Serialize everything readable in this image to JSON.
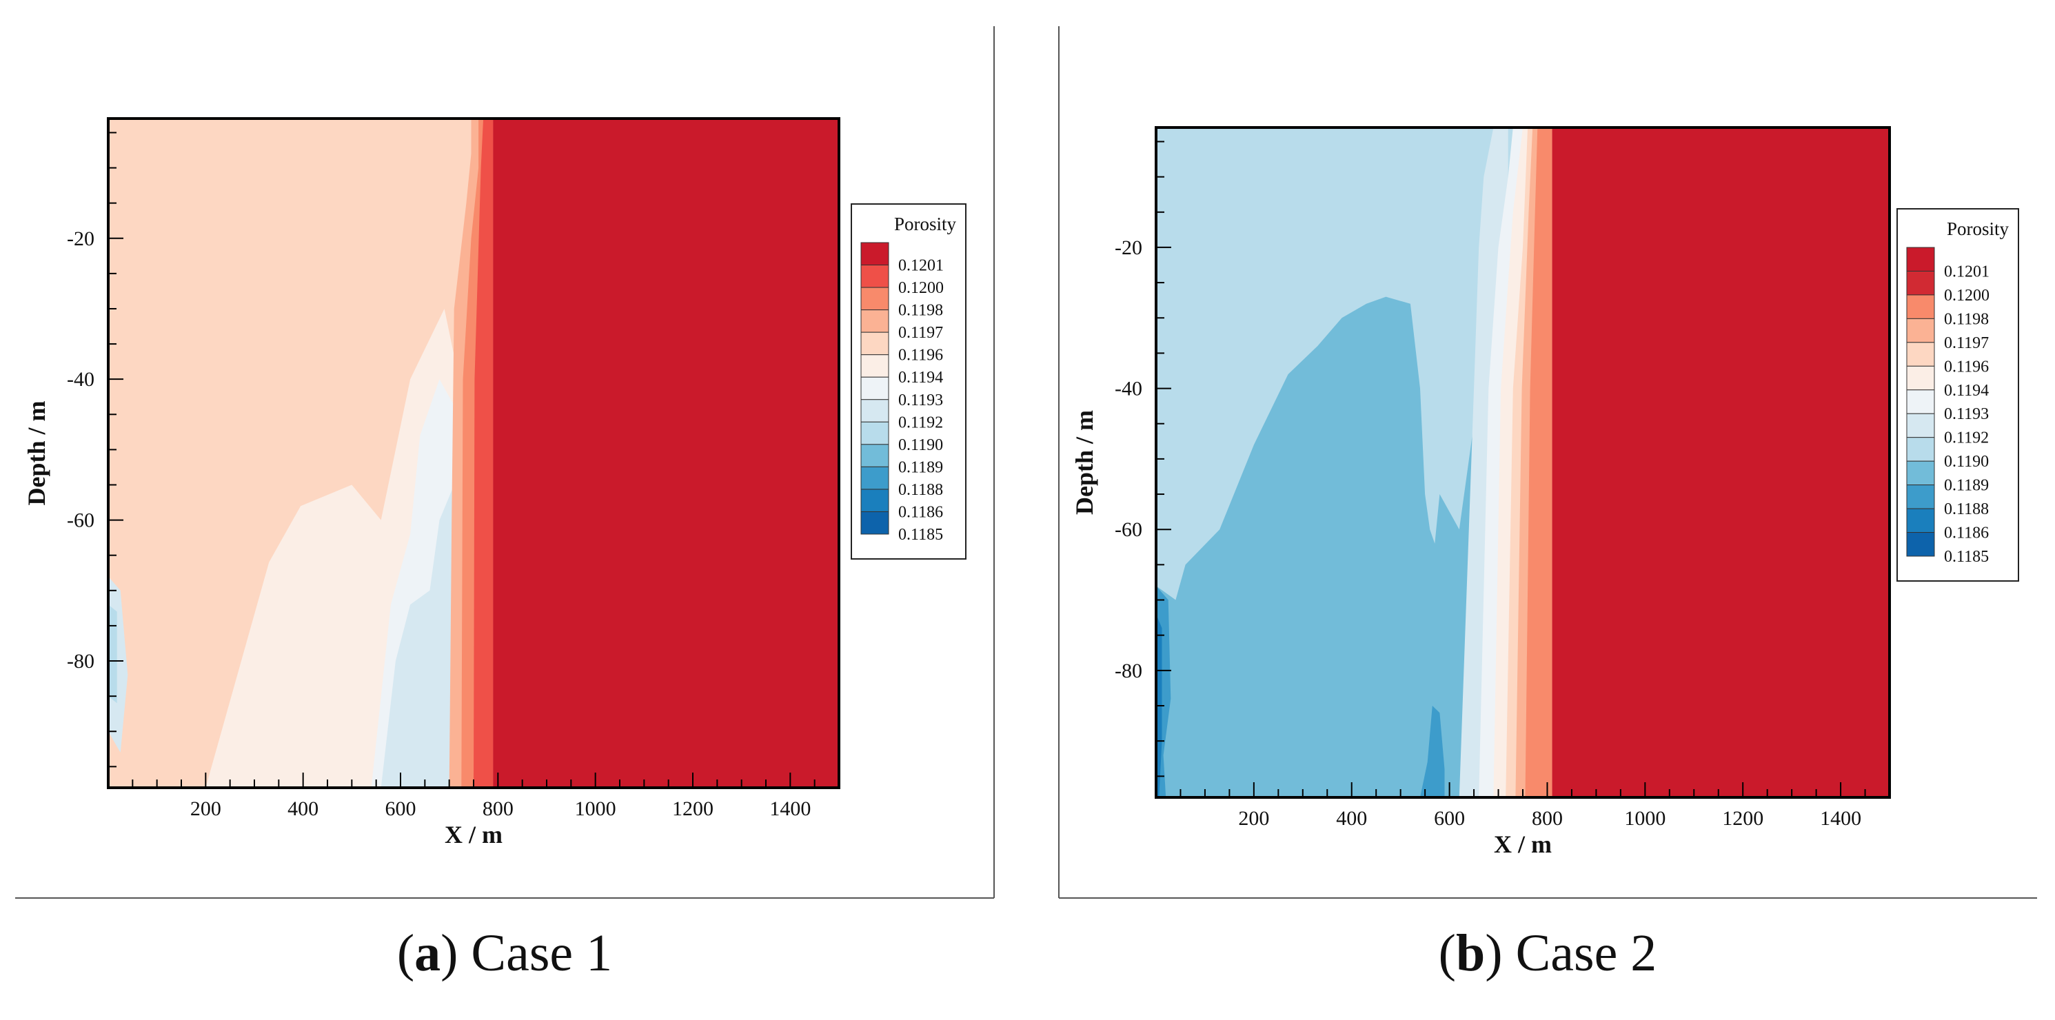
{
  "chart_data": [
    {
      "type": "contour",
      "caption_letter": "a",
      "caption_text": " Case 1",
      "xlabel": "X / m",
      "ylabel": "Depth / m",
      "xlim": [
        0,
        1500
      ],
      "ylim": [
        -98,
        -3
      ],
      "x_ticks": [
        200,
        400,
        600,
        800,
        1000,
        1200,
        1400
      ],
      "y_ticks": [
        -20,
        -40,
        -60,
        -80
      ],
      "legend_title": "Porosity",
      "levels": [
        "0.1201",
        "0.1200",
        "0.1198",
        "0.1197",
        "0.1196",
        "0.1194",
        "0.1193",
        "0.1192",
        "0.1190",
        "0.1189",
        "0.1188",
        "0.1186",
        "0.1185"
      ],
      "colors": [
        "#ca1a2b",
        "#ef5048",
        "#f88a6b",
        "#fbb294",
        "#fdd7c2",
        "#fbeee6",
        "#eef3f7",
        "#d6e8f1",
        "#b8dceb",
        "#72bcd9",
        "#3d9ccb",
        "#1a7fbd",
        "#0d63ab"
      ],
      "background_level": "0.1196",
      "right_zone_level": "0.1201",
      "front_x": 790
    },
    {
      "type": "contour",
      "caption_letter": "b",
      "caption_text": " Case 2",
      "xlabel": "X / m",
      "ylabel": "Depth / m",
      "xlim": [
        0,
        1500
      ],
      "ylim": [
        -98,
        -3
      ],
      "x_ticks": [
        200,
        400,
        600,
        800,
        1000,
        1200,
        1400
      ],
      "y_ticks": [
        -20,
        -40,
        -60,
        -80
      ],
      "legend_title": "Porosity",
      "levels": [
        "0.1201",
        "0.1200",
        "0.1198",
        "0.1197",
        "0.1196",
        "0.1194",
        "0.1193",
        "0.1192",
        "0.1190",
        "0.1189",
        "0.1188",
        "0.1186",
        "0.1185"
      ],
      "colors": [
        "#ca1a2b",
        "#d12a33",
        "#f88a6b",
        "#fbb294",
        "#fdd7c2",
        "#fbeee6",
        "#eef3f7",
        "#d6e8f1",
        "#b8dceb",
        "#72bcd9",
        "#3d9ccb",
        "#1a7fbd",
        "#0d63ab"
      ],
      "background_level": "0.1190",
      "right_zone_level": "0.1201",
      "front_x": 810
    }
  ]
}
